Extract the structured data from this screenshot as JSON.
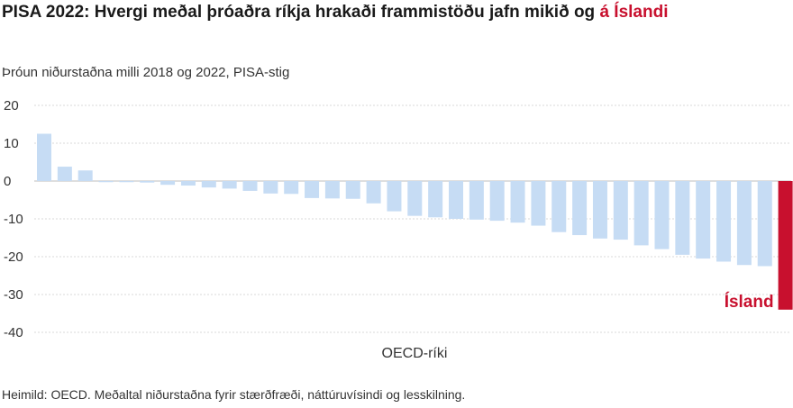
{
  "title": {
    "main": "PISA 2022: Hvergi meðal þróaðra ríkja hrakaði frammistöðu jafn mikið og ",
    "highlight": "á Íslandi"
  },
  "subtitle": "Þróun niðurstaðna milli 2018 og 2022, PISA-stig",
  "source": "Heimild: OECD. Meðaltal niðurstaðna fyrir stærðfræði, náttúruvísindi og lesskilning.",
  "colors": {
    "bar": "#c6dcf4",
    "highlight": "#c8102e",
    "grid": "#d9d9d9"
  },
  "chart_data": {
    "type": "bar",
    "xlabel": "OECD-ríki",
    "ylabel": "",
    "ylim": [
      -40,
      20
    ],
    "yticks": [
      20,
      10,
      0,
      -10,
      -20,
      -30,
      -40
    ],
    "grid": true,
    "values": [
      12.5,
      3.8,
      2.8,
      -0.3,
      -0.3,
      -0.4,
      -1.0,
      -1.2,
      -1.7,
      -2.0,
      -2.6,
      -3.3,
      -3.4,
      -4.5,
      -4.6,
      -4.7,
      -5.9,
      -8.0,
      -9.2,
      -9.6,
      -10.0,
      -10.2,
      -10.5,
      -11.0,
      -11.8,
      -13.5,
      -14.3,
      -15.2,
      -15.5,
      -17.0,
      -18.0,
      -19.5,
      -20.5,
      -21.3,
      -22.2,
      -22.5,
      -34.0
    ],
    "highlight_index": 36,
    "highlight_label": "Ísland"
  }
}
